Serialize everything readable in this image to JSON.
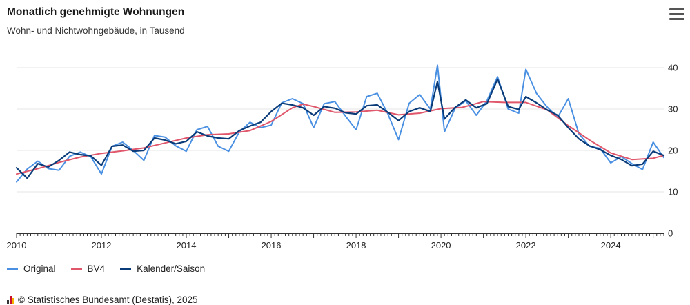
{
  "title": "Monatlich genehmigte Wohnungen",
  "subtitle": "Wohn- und Nichtwohngebäude, in Tausend",
  "credit": "© Statistisches Bundesamt (Destatis), 2025",
  "menu_icon": "hamburger-menu-icon",
  "colors": {
    "Original": "#4a90e2",
    "BV4": "#e0566b",
    "Kalender/Saison": "#0b3c7a",
    "grid": "#e4e4e4"
  },
  "legend": [
    {
      "label": "Original",
      "color": "#4a90e2"
    },
    {
      "label": "BV4",
      "color": "#e0566b"
    },
    {
      "label": "Kalender/Saison",
      "color": "#0b3c7a"
    }
  ],
  "chart_data": {
    "type": "line",
    "title": "Monatlich genehmigte Wohnungen",
    "subtitle": "Wohn- und Nichtwohngebäude, in Tausend",
    "xlim": [
      "2010-01",
      "2025-04"
    ],
    "ylim": [
      0,
      40
    ],
    "y_ticks": [
      "0",
      "10",
      "20",
      "30",
      "40"
    ],
    "x_ticks": [
      "2010",
      "2012",
      "2014",
      "2016",
      "2018",
      "2020",
      "2022",
      "2024"
    ],
    "grid": "horizontal",
    "legend_position": "bottom-left",
    "series": [
      {
        "name": "Original",
        "color": "#4a90e2",
        "points": [
          [
            "2010-01",
            12.4
          ],
          [
            "2010-04",
            15.5
          ],
          [
            "2010-07",
            17.4
          ],
          [
            "2010-10",
            15.6
          ],
          [
            "2011-01",
            15.2
          ],
          [
            "2011-04",
            18.6
          ],
          [
            "2011-07",
            19.6
          ],
          [
            "2011-10",
            18.5
          ],
          [
            "2012-01",
            14.3
          ],
          [
            "2012-04",
            21.0
          ],
          [
            "2012-07",
            22.0
          ],
          [
            "2012-10",
            20.0
          ],
          [
            "2013-01",
            17.6
          ],
          [
            "2013-04",
            23.6
          ],
          [
            "2013-07",
            23.2
          ],
          [
            "2013-10",
            21.1
          ],
          [
            "2014-01",
            19.8
          ],
          [
            "2014-04",
            25.0
          ],
          [
            "2014-07",
            25.8
          ],
          [
            "2014-10",
            21.0
          ],
          [
            "2015-01",
            19.8
          ],
          [
            "2015-04",
            24.5
          ],
          [
            "2015-07",
            26.8
          ],
          [
            "2015-10",
            25.5
          ],
          [
            "2016-01",
            26.1
          ],
          [
            "2016-04",
            31.5
          ],
          [
            "2016-07",
            32.5
          ],
          [
            "2016-10",
            31.3
          ],
          [
            "2017-01",
            25.5
          ],
          [
            "2017-04",
            31.3
          ],
          [
            "2017-07",
            31.8
          ],
          [
            "2017-10",
            28.3
          ],
          [
            "2018-01",
            25.0
          ],
          [
            "2018-04",
            33.0
          ],
          [
            "2018-07",
            33.8
          ],
          [
            "2018-10",
            28.8
          ],
          [
            "2019-01",
            22.6
          ],
          [
            "2019-04",
            31.4
          ],
          [
            "2019-07",
            33.5
          ],
          [
            "2019-10",
            30.0
          ],
          [
            "2019-12",
            40.6
          ],
          [
            "2020-02",
            24.5
          ],
          [
            "2020-05",
            30.2
          ],
          [
            "2020-08",
            32.0
          ],
          [
            "2020-11",
            28.5
          ],
          [
            "2021-02",
            32.0
          ],
          [
            "2021-05",
            37.8
          ],
          [
            "2021-08",
            30.0
          ],
          [
            "2021-11",
            29.0
          ],
          [
            "2022-01",
            39.6
          ],
          [
            "2022-04",
            33.8
          ],
          [
            "2022-07",
            30.5
          ],
          [
            "2022-10",
            28.0
          ],
          [
            "2023-01",
            32.5
          ],
          [
            "2023-04",
            24.0
          ],
          [
            "2023-07",
            21.0
          ],
          [
            "2023-10",
            20.5
          ],
          [
            "2024-01",
            17.0
          ],
          [
            "2024-04",
            18.5
          ],
          [
            "2024-07",
            16.8
          ],
          [
            "2024-10",
            15.4
          ],
          [
            "2025-01",
            22.0
          ],
          [
            "2025-04",
            18.3
          ]
        ]
      },
      {
        "name": "BV4",
        "color": "#e0566b",
        "points": [
          [
            "2010-01",
            14.3
          ],
          [
            "2010-07",
            15.6
          ],
          [
            "2011-01",
            17.1
          ],
          [
            "2011-07",
            18.4
          ],
          [
            "2012-01",
            19.3
          ],
          [
            "2012-07",
            19.9
          ],
          [
            "2013-01",
            20.6
          ],
          [
            "2013-07",
            21.8
          ],
          [
            "2014-01",
            23.0
          ],
          [
            "2014-07",
            23.8
          ],
          [
            "2015-01",
            24.0
          ],
          [
            "2015-07",
            24.8
          ],
          [
            "2016-01",
            27.0
          ],
          [
            "2016-07",
            30.3
          ],
          [
            "2016-10",
            31.2
          ],
          [
            "2017-01",
            30.6
          ],
          [
            "2017-07",
            29.2
          ],
          [
            "2018-01",
            29.3
          ],
          [
            "2018-07",
            29.7
          ],
          [
            "2019-01",
            28.6
          ],
          [
            "2019-07",
            29.0
          ],
          [
            "2020-01",
            30.1
          ],
          [
            "2020-07",
            30.4
          ],
          [
            "2021-01",
            31.8
          ],
          [
            "2021-07",
            31.6
          ],
          [
            "2022-01",
            31.6
          ],
          [
            "2022-07",
            29.8
          ],
          [
            "2023-01",
            26.0
          ],
          [
            "2023-07",
            22.5
          ],
          [
            "2024-01",
            19.4
          ],
          [
            "2024-07",
            17.8
          ],
          [
            "2025-01",
            18.1
          ],
          [
            "2025-04",
            18.8
          ]
        ]
      },
      {
        "name": "Kalender/Saison",
        "color": "#0b3c7a",
        "points": [
          [
            "2010-01",
            15.8
          ],
          [
            "2010-04",
            13.3
          ],
          [
            "2010-07",
            16.8
          ],
          [
            "2010-10",
            16.0
          ],
          [
            "2011-01",
            17.6
          ],
          [
            "2011-04",
            19.6
          ],
          [
            "2011-07",
            19.0
          ],
          [
            "2011-10",
            18.7
          ],
          [
            "2012-01",
            16.4
          ],
          [
            "2012-04",
            21.0
          ],
          [
            "2012-07",
            21.3
          ],
          [
            "2012-10",
            19.8
          ],
          [
            "2013-01",
            20.0
          ],
          [
            "2013-04",
            23.0
          ],
          [
            "2013-07",
            22.5
          ],
          [
            "2013-10",
            21.6
          ],
          [
            "2014-01",
            22.2
          ],
          [
            "2014-04",
            24.5
          ],
          [
            "2014-07",
            23.5
          ],
          [
            "2014-10",
            23.0
          ],
          [
            "2015-01",
            22.8
          ],
          [
            "2015-04",
            24.8
          ],
          [
            "2015-07",
            25.9
          ],
          [
            "2015-10",
            26.8
          ],
          [
            "2016-01",
            29.4
          ],
          [
            "2016-04",
            31.4
          ],
          [
            "2016-07",
            31.0
          ],
          [
            "2016-10",
            30.3
          ],
          [
            "2017-01",
            28.5
          ],
          [
            "2017-04",
            30.6
          ],
          [
            "2017-07",
            30.2
          ],
          [
            "2017-10",
            29.1
          ],
          [
            "2018-01",
            28.8
          ],
          [
            "2018-04",
            30.8
          ],
          [
            "2018-07",
            31.0
          ],
          [
            "2018-10",
            29.2
          ],
          [
            "2019-01",
            27.2
          ],
          [
            "2019-04",
            29.4
          ],
          [
            "2019-07",
            30.3
          ],
          [
            "2019-10",
            29.4
          ],
          [
            "2019-12",
            36.6
          ],
          [
            "2020-02",
            27.6
          ],
          [
            "2020-05",
            30.4
          ],
          [
            "2020-08",
            32.2
          ],
          [
            "2020-11",
            30.3
          ],
          [
            "2021-02",
            31.3
          ],
          [
            "2021-05",
            37.2
          ],
          [
            "2021-08",
            30.6
          ],
          [
            "2021-11",
            29.9
          ],
          [
            "2022-01",
            33.0
          ],
          [
            "2022-04",
            31.5
          ],
          [
            "2022-07",
            29.8
          ],
          [
            "2022-10",
            28.5
          ],
          [
            "2023-01",
            25.5
          ],
          [
            "2023-04",
            22.8
          ],
          [
            "2023-07",
            21.1
          ],
          [
            "2023-10",
            20.2
          ],
          [
            "2024-01",
            18.8
          ],
          [
            "2024-04",
            17.8
          ],
          [
            "2024-07",
            16.3
          ],
          [
            "2024-10",
            16.7
          ],
          [
            "2025-01",
            19.8
          ],
          [
            "2025-04",
            18.8
          ]
        ]
      }
    ]
  }
}
